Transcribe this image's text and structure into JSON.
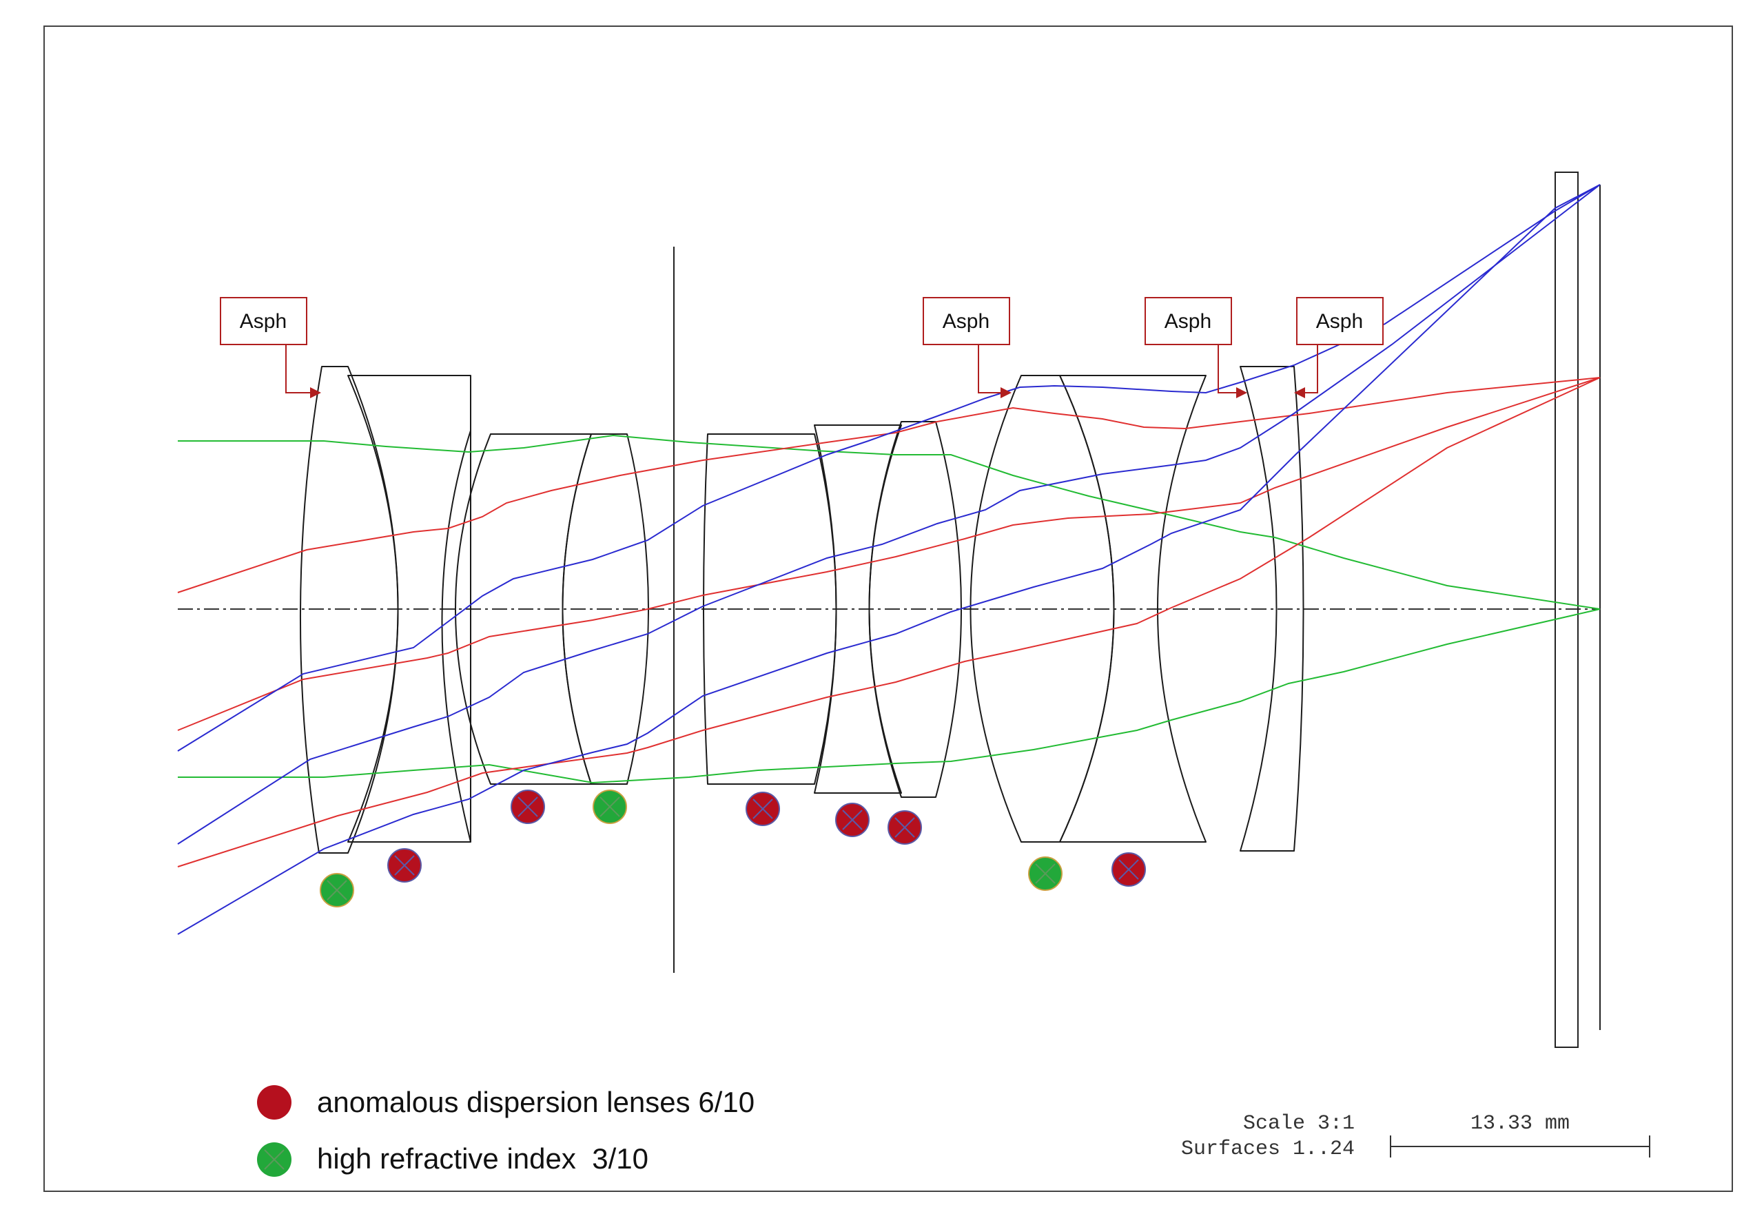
{
  "diagram": {
    "asph_label": "Asph",
    "scale_text": "Scale 3:1",
    "surfaces_text": "Surfaces 1..24",
    "scalebar_text": "13.33 mm",
    "legend": [
      {
        "text": "anomalous dispersion lenses 6/10",
        "kind": "anomalous"
      },
      {
        "text": "high refractive index  3/10",
        "kind": "high-index"
      }
    ],
    "colors": {
      "frame": "#444444",
      "lens": "#1a1a1a",
      "ray_green": "#22bb33",
      "ray_red": "#e03030",
      "ray_blue": "#2a2ad0",
      "asph_border": "#b01e1e",
      "marker_red": "#b5101e",
      "marker_green": "#22a83a",
      "marker_cross": "#5a5aa8"
    }
  }
}
